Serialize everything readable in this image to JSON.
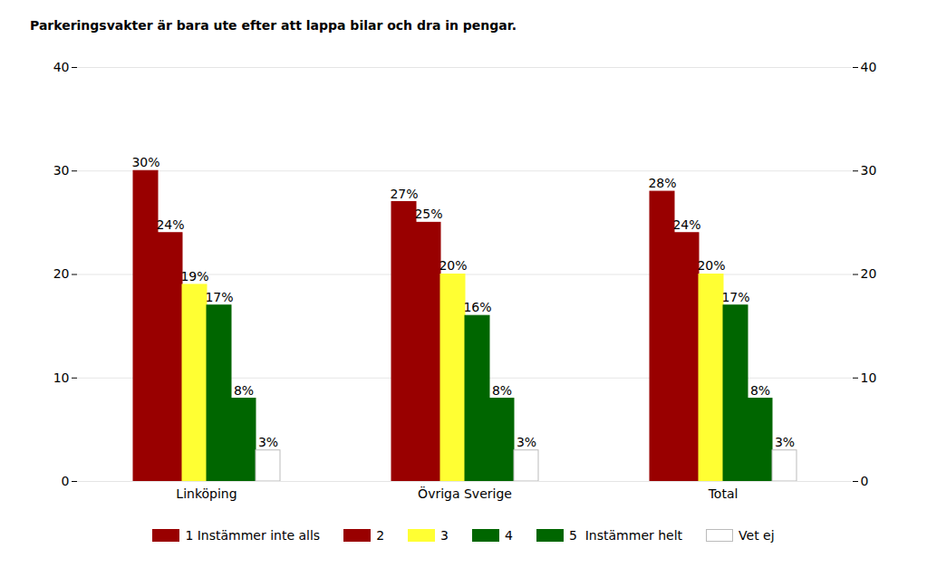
{
  "chart_data": {
    "type": "bar",
    "title": "Parkeringsvakter är bara ute efter att lappa bilar och dra in pengar.",
    "categories": [
      "Linköping",
      "Övriga Sverige",
      "Total"
    ],
    "series": [
      {
        "name": "1 Instämmer inte alls",
        "color": "#990000",
        "values": [
          30,
          27,
          28
        ],
        "value_labels": [
          "30%",
          "27%",
          "28%"
        ]
      },
      {
        "name": "2",
        "color": "#990000",
        "values": [
          24,
          25,
          24
        ],
        "value_labels": [
          "24%",
          "25%",
          "24%"
        ]
      },
      {
        "name": "3",
        "color": "#ffff33",
        "values": [
          19,
          20,
          20
        ],
        "value_labels": [
          "19%",
          "20%",
          "20%"
        ]
      },
      {
        "name": "4",
        "color": "#006600",
        "values": [
          17,
          16,
          17
        ],
        "value_labels": [
          "17%",
          "16%",
          "17%"
        ]
      },
      {
        "name": "5  Instämmer helt",
        "color": "#006600",
        "values": [
          8,
          8,
          8
        ],
        "value_labels": [
          "8%",
          "8%",
          "8%"
        ]
      },
      {
        "name": "Vet ej",
        "color": "#ffffff",
        "values": [
          3,
          3,
          3
        ],
        "value_labels": [
          "3%",
          "3%",
          "3%"
        ]
      }
    ],
    "ylim": [
      0,
      40
    ],
    "yticks": [
      0,
      10,
      20,
      30,
      40
    ],
    "grid": true,
    "data_labels": true,
    "legend": "bottom"
  }
}
